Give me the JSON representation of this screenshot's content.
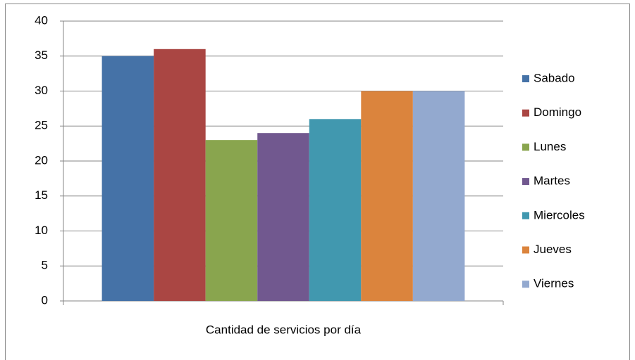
{
  "chart_data": {
    "type": "bar",
    "categories": [
      "Cantidad de servicios por día"
    ],
    "series": [
      {
        "name": "Sabado",
        "color": "#4572A7",
        "values": [
          35
        ]
      },
      {
        "name": "Domingo",
        "color": "#AA4643",
        "values": [
          36
        ]
      },
      {
        "name": "Lunes",
        "color": "#89A54E",
        "values": [
          23
        ]
      },
      {
        "name": "Martes",
        "color": "#71588F",
        "values": [
          24
        ]
      },
      {
        "name": "Miercoles",
        "color": "#4198AF",
        "values": [
          26
        ]
      },
      {
        "name": "Jueves",
        "color": "#DB843D",
        "values": [
          30
        ]
      },
      {
        "name": "Viernes",
        "color": "#93A9CF",
        "values": [
          30
        ]
      }
    ],
    "ylim": [
      0,
      40
    ],
    "yticks": [
      0,
      5,
      10,
      15,
      20,
      25,
      30,
      35,
      40
    ],
    "grid": true,
    "legend": "right"
  }
}
